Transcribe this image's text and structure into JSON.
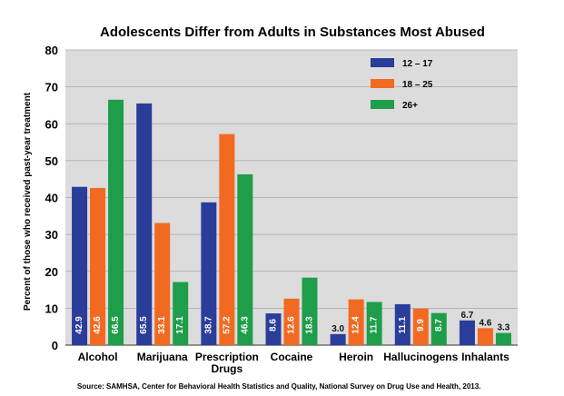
{
  "chart_data": {
    "type": "bar",
    "title": "Adolescents Differ from Adults in Substances Most Abused",
    "ylabel": "Percent of those who received past-year treatment",
    "xlabel": "",
    "ylim": [
      0,
      80
    ],
    "yticks": [
      0,
      10,
      20,
      30,
      40,
      50,
      60,
      70,
      80
    ],
    "grid": true,
    "legend_position": "top-right",
    "categories": [
      "Alcohol",
      "Marijuana",
      "Prescription Drugs",
      "Cocaine",
      "Heroin",
      "Hallucinogens",
      "Inhalants"
    ],
    "series": [
      {
        "name": "12 – 17",
        "color": "#2b3d9b",
        "values": [
          42.9,
          65.5,
          38.7,
          8.6,
          3.0,
          11.1,
          6.7
        ],
        "label_positions": [
          "inside",
          "inside",
          "inside",
          "inside",
          "above",
          "inside",
          "above"
        ]
      },
      {
        "name": "18 – 25",
        "color": "#f26a21",
        "values": [
          42.6,
          33.1,
          57.2,
          12.6,
          12.4,
          9.9,
          4.6
        ],
        "label_positions": [
          "inside",
          "inside",
          "inside",
          "inside",
          "inside",
          "inside",
          "above"
        ]
      },
      {
        "name": "26+",
        "color": "#1e9e4a",
        "values": [
          66.5,
          17.1,
          46.3,
          18.3,
          11.7,
          8.7,
          3.3
        ],
        "label_positions": [
          "inside",
          "inside",
          "inside",
          "inside",
          "inside",
          "inside",
          "above"
        ]
      }
    ],
    "source": "Source: SAMHSA, Center for Behavioral Health Statistics and Quality, National Survey on Drug Use and Health, 2013.",
    "plot_background": "#dcdcdc"
  }
}
